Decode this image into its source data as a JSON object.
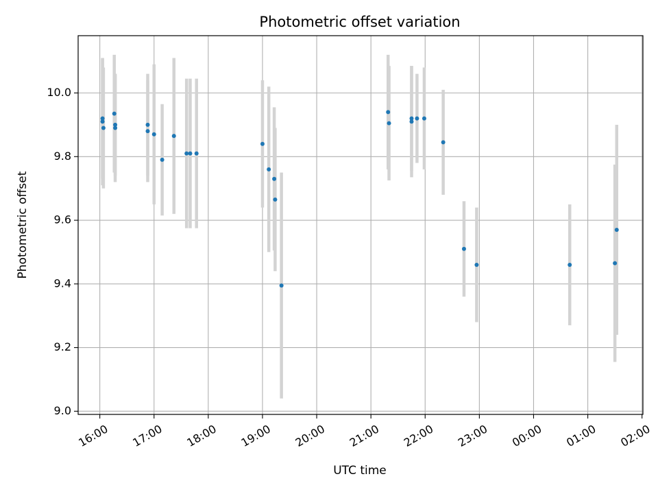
{
  "chart_data": {
    "type": "scatter",
    "title": "Photometric offset variation",
    "xlabel": "UTC time",
    "ylabel": "Photometric offset",
    "x_is_time": true,
    "x_tick_labels": [
      "16:00",
      "17:00",
      "18:00",
      "19:00",
      "20:00",
      "21:00",
      "22:00",
      "23:00",
      "00:00",
      "01:00",
      "02:00"
    ],
    "x_tick_values": [
      "16:00",
      "17:00",
      "18:00",
      "19:00",
      "20:00",
      "21:00",
      "22:00",
      "23:00",
      "00:00",
      "01:00",
      "02:00"
    ],
    "xlim": [
      "15:36",
      "02:01"
    ],
    "y_tick_labels": [
      "9.0",
      "9.2",
      "9.4",
      "9.6",
      "9.8",
      "10.0"
    ],
    "ylim": [
      8.99,
      10.18
    ],
    "grid": true,
    "point_color": "#1f77b4",
    "errorbar_color": "#d3d3d3",
    "points": [
      {
        "x": "16:03",
        "y": 9.92,
        "err": 0.19
      },
      {
        "x": "16:03",
        "y": 9.91,
        "err": 0.2
      },
      {
        "x": "16:04",
        "y": 9.89,
        "err": 0.19
      },
      {
        "x": "16:16",
        "y": 9.935,
        "err": 0.185
      },
      {
        "x": "16:17",
        "y": 9.9,
        "err": 0.16
      },
      {
        "x": "16:17",
        "y": 9.89,
        "err": 0.17
      },
      {
        "x": "16:53",
        "y": 9.9,
        "err": 0.16
      },
      {
        "x": "16:53",
        "y": 9.88,
        "err": 0.16
      },
      {
        "x": "17:00",
        "y": 9.87,
        "err": 0.22
      },
      {
        "x": "17:09",
        "y": 9.79,
        "err": 0.175
      },
      {
        "x": "17:22",
        "y": 9.865,
        "err": 0.245
      },
      {
        "x": "17:36",
        "y": 9.81,
        "err": 0.235
      },
      {
        "x": "17:40",
        "y": 9.81,
        "err": 0.235
      },
      {
        "x": "17:47",
        "y": 9.81,
        "err": 0.235
      },
      {
        "x": "19:00",
        "y": 9.84,
        "err": 0.2
      },
      {
        "x": "19:07",
        "y": 9.76,
        "err": 0.26
      },
      {
        "x": "19:13",
        "y": 9.73,
        "err": 0.225
      },
      {
        "x": "19:14",
        "y": 9.665,
        "err": 0.225
      },
      {
        "x": "19:21",
        "y": 9.395,
        "err": 0.355
      },
      {
        "x": "21:19",
        "y": 9.94,
        "err": 0.18
      },
      {
        "x": "21:20",
        "y": 9.905,
        "err": 0.18
      },
      {
        "x": "21:45",
        "y": 9.92,
        "err": 0.165
      },
      {
        "x": "21:45",
        "y": 9.91,
        "err": 0.175
      },
      {
        "x": "21:51",
        "y": 9.92,
        "err": 0.14
      },
      {
        "x": "21:59",
        "y": 9.92,
        "err": 0.16
      },
      {
        "x": "22:20",
        "y": 9.845,
        "err": 0.165
      },
      {
        "x": "22:43",
        "y": 9.51,
        "err": 0.15
      },
      {
        "x": "22:57",
        "y": 9.46,
        "err": 0.18
      },
      {
        "x": "00:40",
        "y": 9.46,
        "err": 0.19
      },
      {
        "x": "01:30",
        "y": 9.465,
        "err": 0.31
      },
      {
        "x": "01:32",
        "y": 9.57,
        "err": 0.33
      }
    ]
  }
}
